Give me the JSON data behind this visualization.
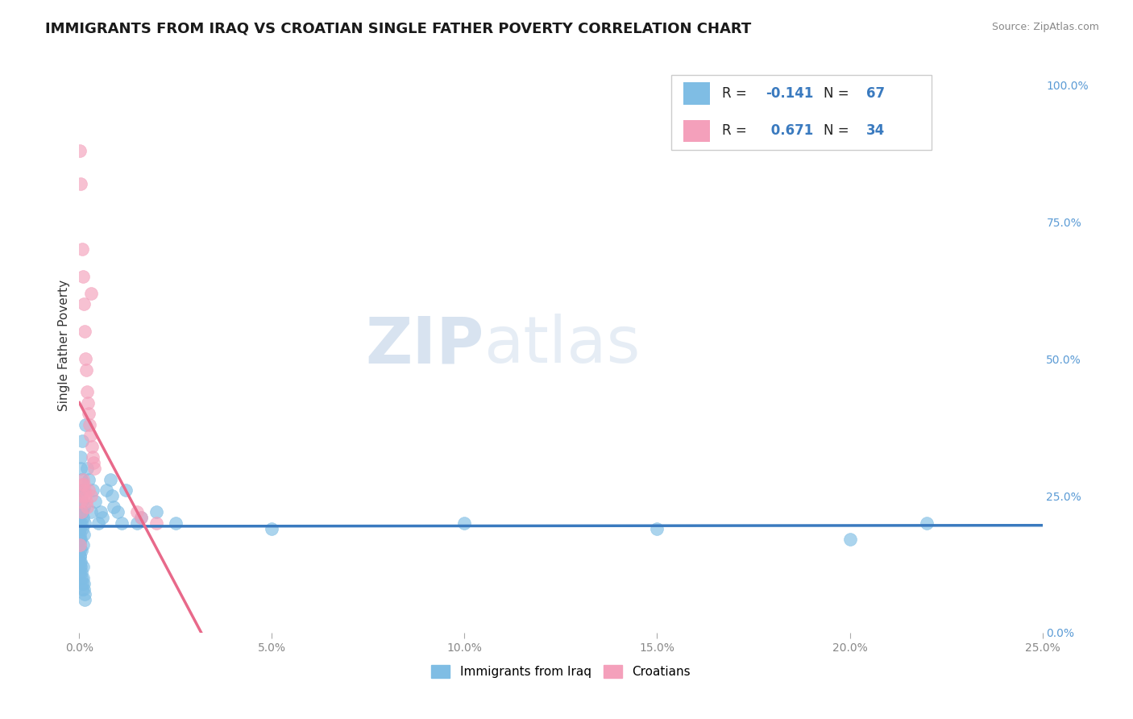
{
  "title": "IMMIGRANTS FROM IRAQ VS CROATIAN SINGLE FATHER POVERTY CORRELATION CHART",
  "source": "Source: ZipAtlas.com",
  "ylabel": "Single Father Poverty",
  "legend_label_blue": "Immigrants from Iraq",
  "legend_label_pink": "Croatians",
  "R_blue": -0.141,
  "N_blue": 67,
  "R_pink": 0.671,
  "N_pink": 34,
  "blue_color": "#7fbde4",
  "pink_color": "#f4a0bb",
  "blue_line_color": "#3a7abf",
  "pink_line_color": "#e8698a",
  "watermark_zip": "ZIP",
  "watermark_atlas": "atlas",
  "title_fontsize": 13,
  "blue_scatter": [
    [
      0.0002,
      0.18
    ],
    [
      0.0003,
      0.22
    ],
    [
      0.0004,
      0.17
    ],
    [
      0.0005,
      0.2
    ],
    [
      0.0006,
      0.15
    ],
    [
      0.0007,
      0.24
    ],
    [
      0.0008,
      0.19
    ],
    [
      0.0009,
      0.16
    ],
    [
      0.001,
      0.21
    ],
    [
      0.0011,
      0.18
    ],
    [
      0.0012,
      0.23
    ],
    [
      0.0013,
      0.2
    ],
    [
      0.0002,
      0.14
    ],
    [
      0.0003,
      0.13
    ],
    [
      0.0004,
      0.12
    ],
    [
      0.0005,
      0.11
    ],
    [
      0.0006,
      0.1
    ],
    [
      0.0007,
      0.09
    ],
    [
      0.0008,
      0.08
    ],
    [
      0.0009,
      0.12
    ],
    [
      0.001,
      0.1
    ],
    [
      0.0011,
      0.09
    ],
    [
      0.0012,
      0.08
    ],
    [
      0.0013,
      0.07
    ],
    [
      0.0014,
      0.06
    ],
    [
      0.0001,
      0.16
    ],
    [
      0.0001,
      0.15
    ],
    [
      0.0001,
      0.14
    ],
    [
      0.0001,
      0.13
    ],
    [
      0.0001,
      0.12
    ],
    [
      0.0001,
      0.11
    ],
    [
      0.0001,
      0.17
    ],
    [
      0.0002,
      0.25
    ],
    [
      0.0003,
      0.3
    ],
    [
      0.0004,
      0.32
    ],
    [
      0.0005,
      0.28
    ],
    [
      0.0006,
      0.26
    ],
    [
      0.0007,
      0.35
    ],
    [
      0.0008,
      0.22
    ],
    [
      0.0009,
      0.26
    ],
    [
      0.0015,
      0.38
    ],
    [
      0.002,
      0.3
    ],
    [
      0.0025,
      0.28
    ],
    [
      0.003,
      0.22
    ],
    [
      0.0035,
      0.26
    ],
    [
      0.004,
      0.24
    ],
    [
      0.005,
      0.2
    ],
    [
      0.0055,
      0.22
    ],
    [
      0.006,
      0.21
    ],
    [
      0.007,
      0.26
    ],
    [
      0.008,
      0.28
    ],
    [
      0.0085,
      0.25
    ],
    [
      0.009,
      0.23
    ],
    [
      0.01,
      0.22
    ],
    [
      0.011,
      0.2
    ],
    [
      0.012,
      0.26
    ],
    [
      0.015,
      0.2
    ],
    [
      0.016,
      0.21
    ],
    [
      0.02,
      0.22
    ],
    [
      0.025,
      0.2
    ],
    [
      0.05,
      0.19
    ],
    [
      0.1,
      0.2
    ],
    [
      0.15,
      0.19
    ],
    [
      0.2,
      0.17
    ],
    [
      0.22,
      0.2
    ],
    [
      0.0001,
      0.2
    ],
    [
      0.0001,
      0.19
    ]
  ],
  "pink_scatter": [
    [
      0.0002,
      0.88
    ],
    [
      0.0004,
      0.82
    ],
    [
      0.0008,
      0.7
    ],
    [
      0.001,
      0.65
    ],
    [
      0.0012,
      0.6
    ],
    [
      0.0014,
      0.55
    ],
    [
      0.0016,
      0.5
    ],
    [
      0.0018,
      0.48
    ],
    [
      0.002,
      0.44
    ],
    [
      0.0022,
      0.42
    ],
    [
      0.0024,
      0.4
    ],
    [
      0.0026,
      0.38
    ],
    [
      0.0028,
      0.36
    ],
    [
      0.003,
      0.62
    ],
    [
      0.0032,
      0.34
    ],
    [
      0.0034,
      0.32
    ],
    [
      0.0036,
      0.31
    ],
    [
      0.0038,
      0.3
    ],
    [
      0.001,
      0.28
    ],
    [
      0.0012,
      0.27
    ],
    [
      0.0014,
      0.26
    ],
    [
      0.0016,
      0.25
    ],
    [
      0.0018,
      0.24
    ],
    [
      0.002,
      0.23
    ],
    [
      0.0005,
      0.22
    ],
    [
      0.0006,
      0.25
    ],
    [
      0.0007,
      0.27
    ],
    [
      0.0025,
      0.26
    ],
    [
      0.003,
      0.25
    ],
    [
      0.0004,
      0.24
    ],
    [
      0.015,
      0.22
    ],
    [
      0.016,
      0.21
    ],
    [
      0.02,
      0.2
    ],
    [
      0.0002,
      0.16
    ]
  ],
  "xlim": [
    0.0,
    0.25
  ],
  "ylim": [
    0.0,
    1.05
  ],
  "xticks": [
    0.0,
    0.05,
    0.1,
    0.15,
    0.2,
    0.25
  ],
  "xticklabels": [
    "0.0%",
    "5.0%",
    "10.0%",
    "15.0%",
    "20.0%",
    "25.0%"
  ],
  "right_yticks": [
    0.0,
    0.25,
    0.5,
    0.75,
    1.0
  ],
  "right_yticklabels": [
    "0.0%",
    "25.0%",
    "50.0%",
    "75.0%",
    "100.0%"
  ]
}
